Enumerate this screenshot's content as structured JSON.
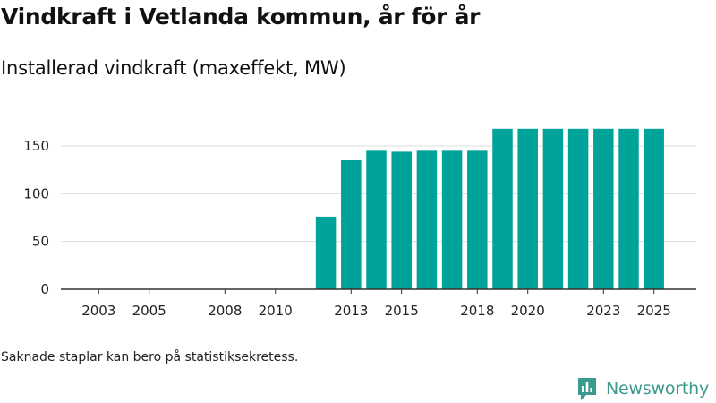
{
  "header": {
    "title": "Vindkraft i Vetlanda kommun, år för år",
    "subtitle": "Installerad vindkraft (maxeffekt, MW)"
  },
  "footer": {
    "note": "Saknade staplar kan bero på statistiksekretess.",
    "brand": "Newsworthy"
  },
  "colors": {
    "bar": "#00a39a",
    "grid": "#dddddd",
    "axis": "#333333",
    "brand": "#3a9a8e"
  },
  "chart_data": {
    "type": "bar",
    "title": "Vindkraft i Vetlanda kommun, år för år",
    "subtitle": "Installerad vindkraft (maxeffekt, MW)",
    "xlabel": "",
    "ylabel": "",
    "ylim": [
      0,
      180
    ],
    "y_ticks": [
      0,
      50,
      100,
      150
    ],
    "x_range": [
      2002,
      2026
    ],
    "x_ticks": [
      2003,
      2005,
      2008,
      2010,
      2013,
      2015,
      2018,
      2020,
      2023,
      2025
    ],
    "categories": [
      2012,
      2013,
      2014,
      2015,
      2016,
      2017,
      2018,
      2019,
      2020,
      2021,
      2022,
      2023,
      2024,
      2025
    ],
    "values": [
      76,
      135,
      145,
      144,
      145,
      145,
      145,
      168,
      168,
      168,
      168,
      168,
      168,
      168
    ],
    "grid": true,
    "legend": "none"
  }
}
